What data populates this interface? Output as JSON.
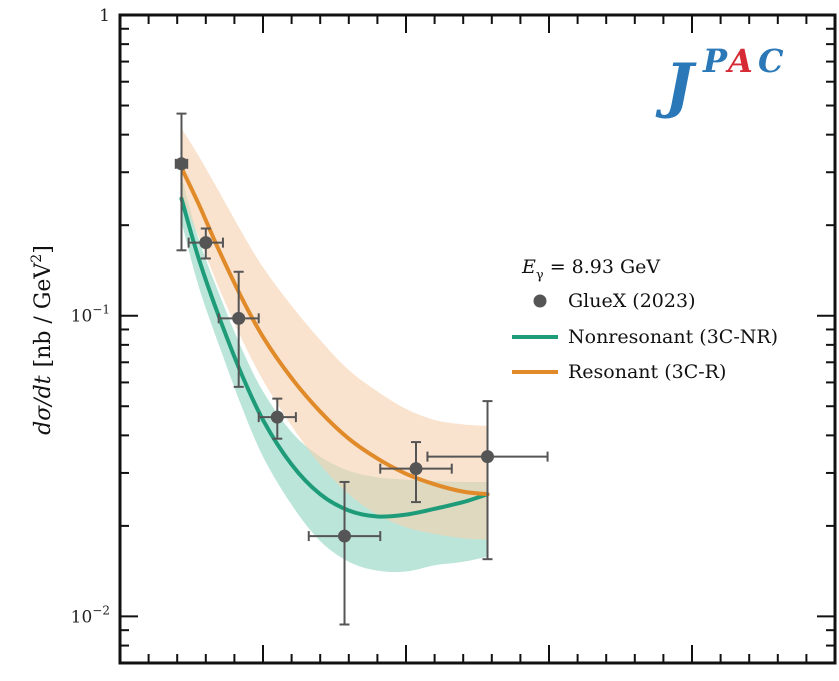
{
  "chart_data": {
    "type": "line",
    "title": "",
    "xlabel": "",
    "ylabel_var": "dσ/dt",
    "ylabel_unit": "[nb / GeV",
    "ylabel_unit_sup": "2",
    "ylabel_unit_end": "]",
    "yscale": "log",
    "ylim": [
      0.007,
      1
    ],
    "xlim": [
      0,
      5
    ],
    "x_ticks_major": [
      1,
      2,
      3,
      4
    ],
    "y_ticks": [
      {
        "value": 1,
        "base": "1",
        "exp": ""
      },
      {
        "value": 0.1,
        "base": "10",
        "exp": "−1"
      },
      {
        "value": 0.01,
        "base": "10",
        "exp": "−2"
      }
    ],
    "annotation": {
      "symbol": "E",
      "subscript": "γ",
      "text": " = 8.93 GeV"
    },
    "logo": {
      "j": "J",
      "p": "P",
      "a": "A",
      "c": "C",
      "color_j": "#2a78b8",
      "color_a": "#d62a35"
    },
    "legend_position": "right",
    "grid": false,
    "data_points": {
      "name": "GlueX (2023)",
      "color": "#555555",
      "points": [
        {
          "x": 0.43,
          "y": 0.32,
          "xerr": 0.04,
          "ylo": 0.165,
          "yhi": 0.47
        },
        {
          "x": 0.6,
          "y": 0.175,
          "xerr": 0.12,
          "ylo": 0.155,
          "yhi": 0.195
        },
        {
          "x": 0.83,
          "y": 0.098,
          "xerr": 0.14,
          "ylo": 0.058,
          "yhi": 0.14
        },
        {
          "x": 1.1,
          "y": 0.046,
          "xerr": 0.13,
          "ylo": 0.039,
          "yhi": 0.053
        },
        {
          "x": 1.57,
          "y": 0.0185,
          "xerr": 0.25,
          "ylo": 0.0094,
          "yhi": 0.028
        },
        {
          "x": 2.07,
          "y": 0.031,
          "xerr": 0.25,
          "ylo": 0.024,
          "yhi": 0.038
        },
        {
          "x": 2.57,
          "y": 0.034,
          "xerr": 0.42,
          "ylo": 0.0155,
          "yhi": 0.052
        }
      ]
    },
    "series": [
      {
        "name": "Nonresonant (3C-NR)",
        "color": "#1e9c7a",
        "band_color": "#8fd4c0",
        "x": [
          0.43,
          0.55,
          0.7,
          0.85,
          1.0,
          1.2,
          1.4,
          1.6,
          1.8,
          2.0,
          2.2,
          2.4,
          2.57
        ],
        "y": [
          0.245,
          0.155,
          0.097,
          0.064,
          0.045,
          0.032,
          0.0255,
          0.0225,
          0.0215,
          0.0218,
          0.0228,
          0.024,
          0.0255
        ],
        "ylo": [
          0.205,
          0.125,
          0.078,
          0.05,
          0.034,
          0.0235,
          0.0178,
          0.0152,
          0.0142,
          0.0141,
          0.0148,
          0.0152,
          0.0158
        ],
        "yhi": [
          0.29,
          0.18,
          0.116,
          0.078,
          0.056,
          0.041,
          0.034,
          0.0305,
          0.029,
          0.0285,
          0.0282,
          0.028,
          0.028
        ]
      },
      {
        "name": "Resonant (3C-R)",
        "color": "#e08a2a",
        "band_color": "#f5d1ad",
        "x": [
          0.43,
          0.55,
          0.7,
          0.85,
          1.0,
          1.2,
          1.4,
          1.6,
          1.8,
          2.0,
          2.2,
          2.4,
          2.57
        ],
        "y": [
          0.31,
          0.235,
          0.162,
          0.115,
          0.085,
          0.062,
          0.048,
          0.039,
          0.0335,
          0.0298,
          0.0275,
          0.026,
          0.0255
        ],
        "ylo": [
          0.25,
          0.183,
          0.121,
          0.084,
          0.061,
          0.043,
          0.032,
          0.0255,
          0.0218,
          0.0198,
          0.0188,
          0.0182,
          0.018
        ],
        "yhi": [
          0.42,
          0.34,
          0.255,
          0.19,
          0.145,
          0.108,
          0.083,
          0.066,
          0.056,
          0.049,
          0.045,
          0.0435,
          0.043
        ]
      }
    ]
  }
}
